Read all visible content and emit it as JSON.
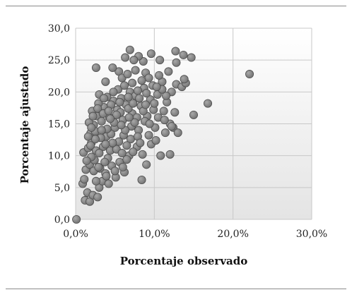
{
  "chart_data": {
    "type": "scatter",
    "title": "",
    "xlabel": "Porcentaje observado",
    "ylabel": "Porcentaje ajustado",
    "xlim": [
      0,
      30
    ],
    "ylim": [
      0,
      30
    ],
    "x_ticks": [
      "0,0%",
      "10,0%",
      "20,0%",
      "30,0%"
    ],
    "y_ticks": [
      "0,0",
      "5,0",
      "10,0",
      "15,0",
      "20,0",
      "25,0",
      "30,0"
    ],
    "grid": true,
    "legend": "none",
    "marker_color": "#7a7a7a",
    "points": [
      {
        "x": 0.1,
        "y": 0.0
      },
      {
        "x": 1.2,
        "y": 3.0
      },
      {
        "x": 1.8,
        "y": 2.8
      },
      {
        "x": 0.9,
        "y": 5.6
      },
      {
        "x": 1.1,
        "y": 6.3
      },
      {
        "x": 1.5,
        "y": 4.2
      },
      {
        "x": 2.2,
        "y": 3.8
      },
      {
        "x": 2.8,
        "y": 3.5
      },
      {
        "x": 3.0,
        "y": 5.0
      },
      {
        "x": 3.4,
        "y": 6.0
      },
      {
        "x": 1.3,
        "y": 7.8
      },
      {
        "x": 1.8,
        "y": 8.6
      },
      {
        "x": 2.4,
        "y": 9.3
      },
      {
        "x": 1.0,
        "y": 10.5
      },
      {
        "x": 1.6,
        "y": 11.2
      },
      {
        "x": 2.0,
        "y": 12.0
      },
      {
        "x": 2.6,
        "y": 10.8
      },
      {
        "x": 3.1,
        "y": 8.0
      },
      {
        "x": 3.8,
        "y": 7.2
      },
      {
        "x": 4.2,
        "y": 5.6
      },
      {
        "x": 4.6,
        "y": 8.4
      },
      {
        "x": 5.1,
        "y": 6.6
      },
      {
        "x": 5.6,
        "y": 9.0
      },
      {
        "x": 6.2,
        "y": 7.4
      },
      {
        "x": 6.8,
        "y": 10.0
      },
      {
        "x": 1.9,
        "y": 13.5
      },
      {
        "x": 2.3,
        "y": 14.8
      },
      {
        "x": 2.7,
        "y": 16.2
      },
      {
        "x": 2.1,
        "y": 17.0
      },
      {
        "x": 3.3,
        "y": 15.4
      },
      {
        "x": 3.6,
        "y": 17.6
      },
      {
        "x": 2.9,
        "y": 18.2
      },
      {
        "x": 3.9,
        "y": 13.0
      },
      {
        "x": 4.3,
        "y": 16.0
      },
      {
        "x": 4.8,
        "y": 18.6
      },
      {
        "x": 4.0,
        "y": 19.2
      },
      {
        "x": 5.0,
        "y": 14.4
      },
      {
        "x": 5.3,
        "y": 17.2
      },
      {
        "x": 5.8,
        "y": 19.0
      },
      {
        "x": 5.5,
        "y": 12.2
      },
      {
        "x": 6.0,
        "y": 15.6
      },
      {
        "x": 6.4,
        "y": 18.0
      },
      {
        "x": 6.9,
        "y": 20.0
      },
      {
        "x": 7.2,
        "y": 16.6
      },
      {
        "x": 7.6,
        "y": 19.4
      },
      {
        "x": 8.0,
        "y": 14.0
      },
      {
        "x": 8.3,
        "y": 17.8
      },
      {
        "x": 8.7,
        "y": 20.6
      },
      {
        "x": 9.1,
        "y": 16.2
      },
      {
        "x": 9.5,
        "y": 18.8
      },
      {
        "x": 7.0,
        "y": 12.6
      },
      {
        "x": 7.8,
        "y": 11.4
      },
      {
        "x": 8.5,
        "y": 10.2
      },
      {
        "x": 9.6,
        "y": 11.8
      },
      {
        "x": 10.2,
        "y": 12.4
      },
      {
        "x": 10.8,
        "y": 10.0
      },
      {
        "x": 11.4,
        "y": 13.6
      },
      {
        "x": 12.0,
        "y": 10.2
      },
      {
        "x": 12.4,
        "y": 14.4
      },
      {
        "x": 13.0,
        "y": 13.6
      },
      {
        "x": 9.8,
        "y": 21.0
      },
      {
        "x": 10.4,
        "y": 19.6
      },
      {
        "x": 11.0,
        "y": 21.6
      },
      {
        "x": 11.6,
        "y": 18.4
      },
      {
        "x": 12.2,
        "y": 20.0
      },
      {
        "x": 12.8,
        "y": 21.2
      },
      {
        "x": 13.5,
        "y": 20.8
      },
      {
        "x": 14.0,
        "y": 21.4
      },
      {
        "x": 12.6,
        "y": 16.8
      },
      {
        "x": 12.0,
        "y": 15.0
      },
      {
        "x": 12.2,
        "y": 14.6
      },
      {
        "x": 10.6,
        "y": 22.6
      },
      {
        "x": 11.8,
        "y": 23.2
      },
      {
        "x": 12.8,
        "y": 24.6
      },
      {
        "x": 13.8,
        "y": 22.0
      },
      {
        "x": 12.7,
        "y": 26.4
      },
      {
        "x": 13.7,
        "y": 25.8
      },
      {
        "x": 14.7,
        "y": 25.4
      },
      {
        "x": 10.7,
        "y": 25.0
      },
      {
        "x": 9.6,
        "y": 26.0
      },
      {
        "x": 8.6,
        "y": 24.8
      },
      {
        "x": 8.0,
        "y": 25.6
      },
      {
        "x": 7.4,
        "y": 25.0
      },
      {
        "x": 6.9,
        "y": 26.6
      },
      {
        "x": 6.3,
        "y": 25.4
      },
      {
        "x": 5.5,
        "y": 23.2
      },
      {
        "x": 4.7,
        "y": 23.8
      },
      {
        "x": 2.6,
        "y": 23.8
      },
      {
        "x": 3.8,
        "y": 21.6
      },
      {
        "x": 5.9,
        "y": 22.2
      },
      {
        "x": 6.6,
        "y": 22.8
      },
      {
        "x": 7.6,
        "y": 23.4
      },
      {
        "x": 8.9,
        "y": 23.0
      },
      {
        "x": 9.3,
        "y": 22.2
      },
      {
        "x": 15.0,
        "y": 16.4
      },
      {
        "x": 16.8,
        "y": 18.2
      },
      {
        "x": 22.1,
        "y": 22.8
      },
      {
        "x": 8.4,
        "y": 6.2
      },
      {
        "x": 9.0,
        "y": 8.6
      },
      {
        "x": 4.4,
        "y": 10.8
      },
      {
        "x": 3.5,
        "y": 11.4
      },
      {
        "x": 2.0,
        "y": 9.8
      },
      {
        "x": 5.2,
        "y": 11.0
      },
      {
        "x": 6.1,
        "y": 13.2
      },
      {
        "x": 4.9,
        "y": 15.2
      },
      {
        "x": 3.2,
        "y": 12.8
      },
      {
        "x": 2.5,
        "y": 13.8
      },
      {
        "x": 1.7,
        "y": 15.2
      },
      {
        "x": 2.8,
        "y": 17.4
      },
      {
        "x": 5.7,
        "y": 16.8
      },
      {
        "x": 6.7,
        "y": 17.4
      },
      {
        "x": 7.3,
        "y": 18.2
      },
      {
        "x": 8.1,
        "y": 19.0
      },
      {
        "x": 8.8,
        "y": 15.4
      },
      {
        "x": 9.9,
        "y": 17.2
      },
      {
        "x": 10.5,
        "y": 16.0
      },
      {
        "x": 11.2,
        "y": 17.0
      },
      {
        "x": 11.5,
        "y": 19.4
      },
      {
        "x": 10.1,
        "y": 14.4
      },
      {
        "x": 9.3,
        "y": 13.2
      },
      {
        "x": 7.9,
        "y": 13.0
      },
      {
        "x": 7.1,
        "y": 14.6
      },
      {
        "x": 6.5,
        "y": 11.6
      },
      {
        "x": 5.9,
        "y": 10.4
      },
      {
        "x": 4.1,
        "y": 9.6
      },
      {
        "x": 3.7,
        "y": 9.0
      },
      {
        "x": 2.3,
        "y": 7.6
      },
      {
        "x": 1.4,
        "y": 9.2
      },
      {
        "x": 4.5,
        "y": 13.4
      },
      {
        "x": 5.4,
        "y": 20.4
      },
      {
        "x": 6.2,
        "y": 21.0
      },
      {
        "x": 7.2,
        "y": 21.4
      },
      {
        "x": 8.4,
        "y": 21.8
      },
      {
        "x": 4.5,
        "y": 18.0
      },
      {
        "x": 3.0,
        "y": 19.6
      },
      {
        "x": 2.2,
        "y": 16.2
      },
      {
        "x": 3.5,
        "y": 16.6
      },
      {
        "x": 4.0,
        "y": 14.2
      },
      {
        "x": 6.7,
        "y": 19.2
      },
      {
        "x": 7.8,
        "y": 16.0
      },
      {
        "x": 9.0,
        "y": 19.8
      },
      {
        "x": 10.0,
        "y": 18.2
      },
      {
        "x": 11.0,
        "y": 20.4
      },
      {
        "x": 6.0,
        "y": 8.2
      },
      {
        "x": 5.0,
        "y": 7.6
      },
      {
        "x": 3.9,
        "y": 6.8
      },
      {
        "x": 2.6,
        "y": 6.0
      },
      {
        "x": 1.9,
        "y": 11.6
      },
      {
        "x": 3.0,
        "y": 10.4
      },
      {
        "x": 4.7,
        "y": 12.0
      },
      {
        "x": 6.3,
        "y": 14.0
      },
      {
        "x": 7.5,
        "y": 15.2
      },
      {
        "x": 8.6,
        "y": 17.0
      },
      {
        "x": 9.4,
        "y": 15.0
      },
      {
        "x": 5.2,
        "y": 16.4
      },
      {
        "x": 3.3,
        "y": 14.0
      },
      {
        "x": 2.5,
        "y": 12.6
      },
      {
        "x": 4.2,
        "y": 17.0
      },
      {
        "x": 5.6,
        "y": 18.4
      },
      {
        "x": 6.8,
        "y": 16.0
      },
      {
        "x": 7.9,
        "y": 20.2
      },
      {
        "x": 8.9,
        "y": 18.0
      },
      {
        "x": 10.3,
        "y": 20.8
      },
      {
        "x": 11.3,
        "y": 15.6
      },
      {
        "x": 4.8,
        "y": 20.0
      },
      {
        "x": 3.6,
        "y": 19.0
      },
      {
        "x": 5.8,
        "y": 14.8
      },
      {
        "x": 6.5,
        "y": 9.4
      },
      {
        "x": 7.3,
        "y": 10.6
      },
      {
        "x": 8.2,
        "y": 12.0
      },
      {
        "x": 2.9,
        "y": 8.2
      },
      {
        "x": 3.8,
        "y": 11.8
      },
      {
        "x": 1.6,
        "y": 13.0
      },
      {
        "x": 2.0,
        "y": 14.4
      },
      {
        "x": 4.4,
        "y": 15.8
      }
    ]
  }
}
